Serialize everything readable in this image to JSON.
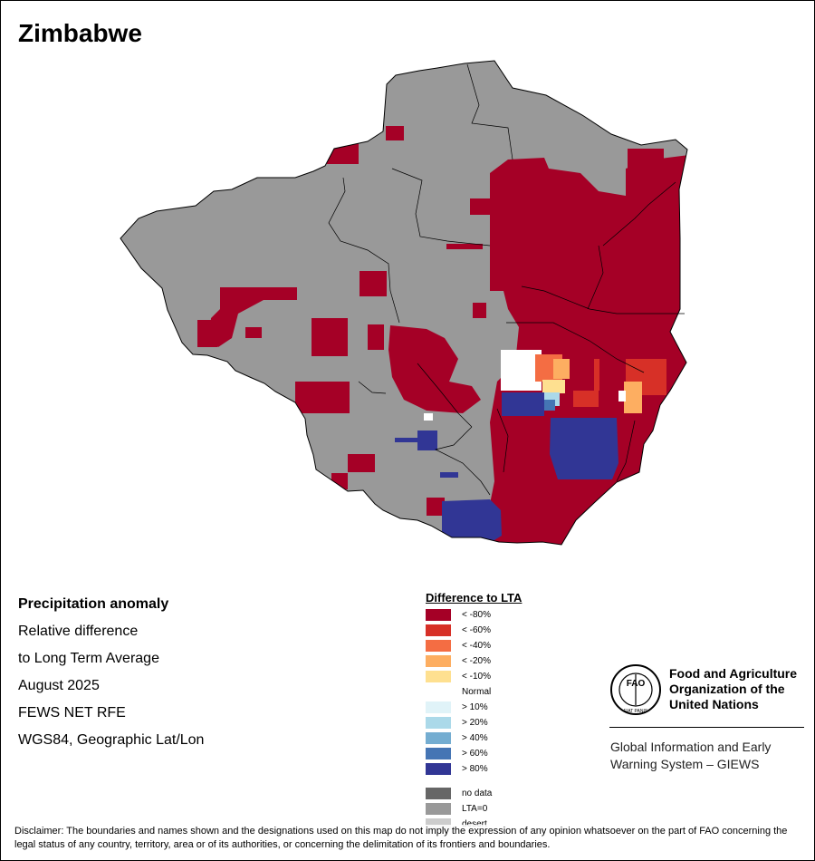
{
  "title": "Zimbabwe",
  "info": {
    "heading": "Precipitation anomaly",
    "line1": "Relative difference",
    "line2": "to Long Term Average",
    "period": "August 2025",
    "source": "FEWS NET RFE",
    "projection": "WGS84, Geographic Lat/Lon"
  },
  "legend": {
    "title": "Difference to LTA",
    "items": [
      {
        "label": "< -80%",
        "color": "#a50026"
      },
      {
        "label": "< -60%",
        "color": "#d73027"
      },
      {
        "label": "< -40%",
        "color": "#f46d43"
      },
      {
        "label": "< -20%",
        "color": "#fdae61"
      },
      {
        "label": "< -10%",
        "color": "#fee090"
      },
      {
        "label": "Normal",
        "color": "#ffffff"
      },
      {
        "label": "> 10%",
        "color": "#e0f3f8"
      },
      {
        "label": "> 20%",
        "color": "#abd9e9"
      },
      {
        "label": "> 40%",
        "color": "#74add1"
      },
      {
        "label": "> 60%",
        "color": "#4575b4"
      },
      {
        "label": "> 80%",
        "color": "#313695"
      }
    ],
    "extra": [
      {
        "label": "no data",
        "color": "#666666"
      },
      {
        "label": "LTA=0",
        "color": "#999999"
      },
      {
        "label": "desert",
        "color": "#cccccc"
      }
    ]
  },
  "fao": {
    "logo_text": "FAO",
    "logo_motto": "FIAT PANIS",
    "name_line1": "Food and Agriculture",
    "name_line2": "Organization of the",
    "name_line3": "United Nations",
    "giews_line1": "Global Information and Early",
    "giews_line2": "Warning System – GIEWS"
  },
  "disclaimer": "Disclaimer: The boundaries and names shown and the designations used on this map do not imply the expression of any opinion whatsoever on the part of FAO concerning the legal status of any country, territory, area or of its authorities, or concerning the delimitation of its frontiers and boundaries."
}
